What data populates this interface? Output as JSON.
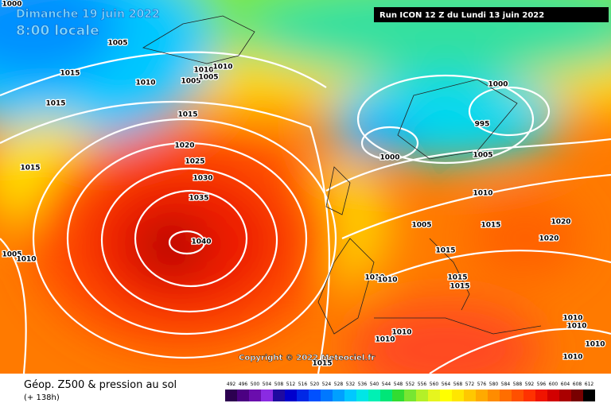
{
  "header": {
    "date": "Dimanche 19 juin 2022",
    "time": "8:00 locale",
    "run": "Run ICON 12 Z du Lundi 13 juin 2022"
  },
  "copyright": "Copyright © 2022 Meteociel.fr",
  "footer": {
    "title": "Géop. Z500 & pression au sol",
    "lead": "(+ 138h)"
  },
  "isobar_labels": [
    "1000",
    "1005",
    "1015",
    "1015",
    "1010",
    "1005",
    "1010",
    "1005",
    "1010",
    "1015",
    "1020",
    "1025",
    "1030",
    "1035",
    "1040",
    "1015",
    "1005",
    "1010",
    "1000",
    "995",
    "1000",
    "1005",
    "1010",
    "1005",
    "1015",
    "1020",
    "1020",
    "1015",
    "1010",
    "1010",
    "1015",
    "1015",
    "1010",
    "1010",
    "1010",
    "1010",
    "1010",
    "1010",
    "1015"
  ],
  "scale": {
    "ticks": [
      492,
      496,
      500,
      504,
      508,
      512,
      516,
      520,
      524,
      528,
      532,
      536,
      540,
      544,
      548,
      552,
      556,
      560,
      564,
      568,
      572,
      576,
      580,
      584,
      588,
      592,
      596,
      600,
      604,
      608,
      612
    ],
    "colors": [
      "#2c0050",
      "#4b0082",
      "#6a0dad",
      "#8a2be2",
      "#1e0aa0",
      "#0000cd",
      "#0028e6",
      "#0050ff",
      "#0078ff",
      "#00a0ff",
      "#00c8ff",
      "#00e6e6",
      "#00f0b4",
      "#00e678",
      "#32dc32",
      "#78e632",
      "#b4f028",
      "#e6f51e",
      "#ffff00",
      "#ffe600",
      "#ffc800",
      "#ffaa00",
      "#ff8c00",
      "#ff6e00",
      "#ff5000",
      "#ff3200",
      "#f01400",
      "#d20000",
      "#aa0000",
      "#780000",
      "#000000"
    ]
  }
}
